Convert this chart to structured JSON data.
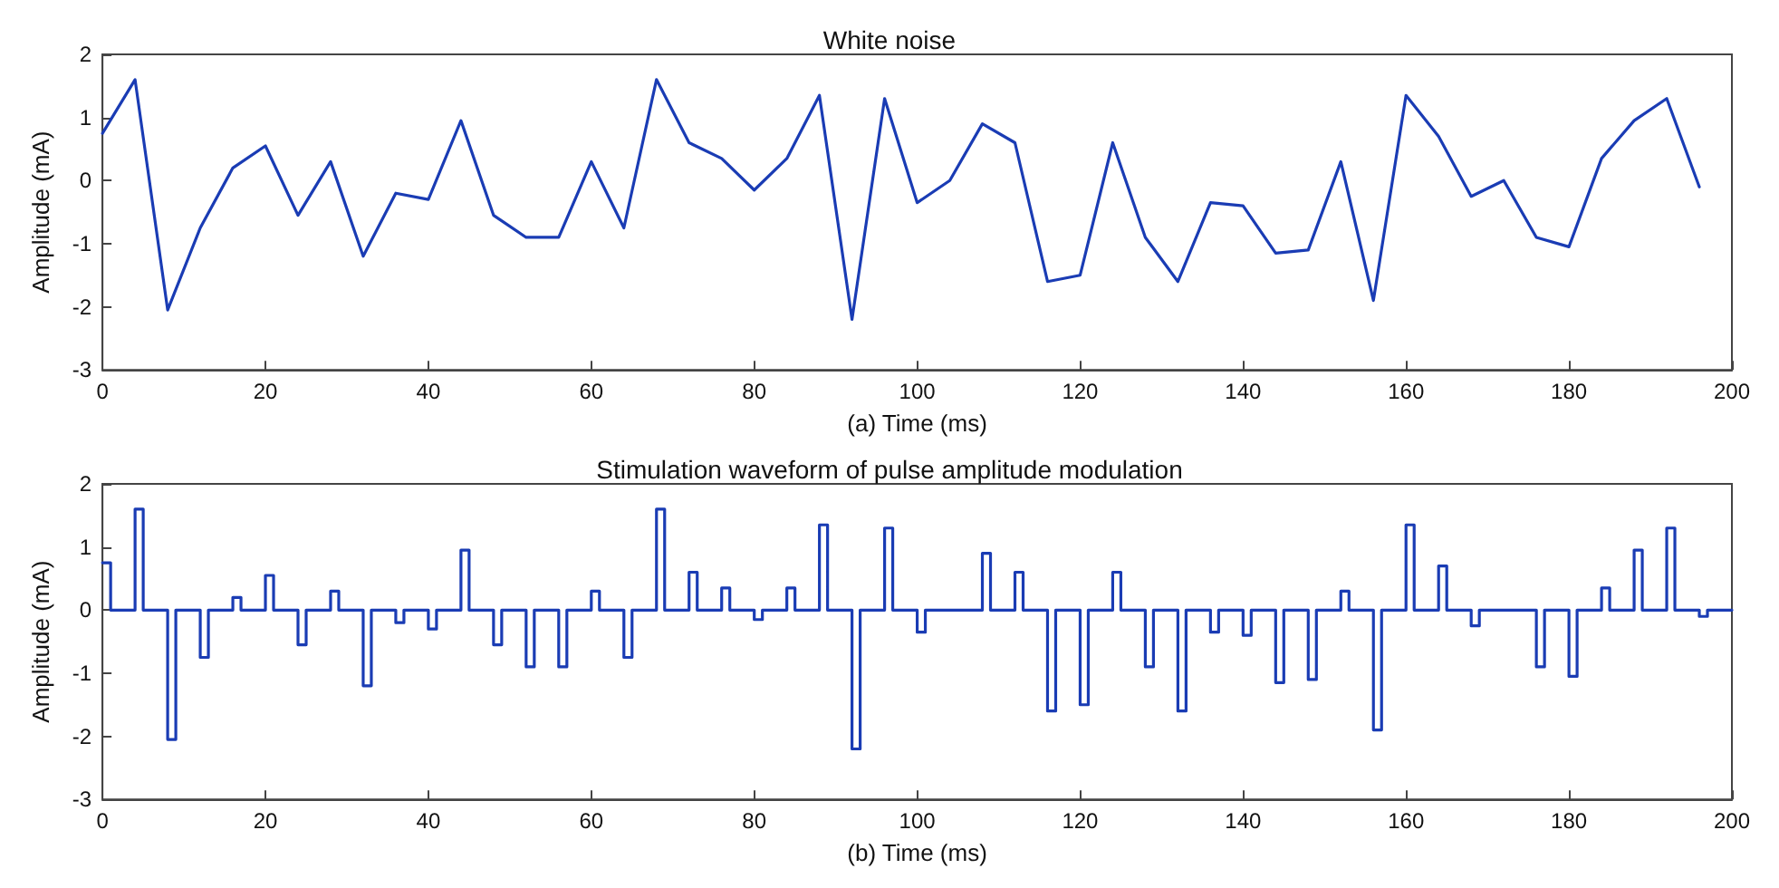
{
  "chart_data": [
    {
      "type": "line",
      "title": "White noise",
      "xlabel": "(a) Time (ms)",
      "ylabel": "Amplitude (mA)",
      "xlim": [
        0,
        200
      ],
      "xticks": [
        0,
        20,
        40,
        60,
        80,
        100,
        120,
        140,
        160,
        180,
        200
      ],
      "ylim": [
        -3,
        2
      ],
      "yticks": [
        -3,
        -2,
        -1,
        0,
        1,
        2
      ],
      "grid": false,
      "marker": "none",
      "line_style": "solid",
      "series": [
        {
          "color": "#1a3cb4",
          "x": [
            0,
            4,
            8,
            12,
            16,
            20,
            24,
            28,
            32,
            36,
            40,
            44,
            48,
            52,
            56,
            60,
            64,
            68,
            72,
            76,
            80,
            84,
            88,
            92,
            96,
            100,
            104,
            108,
            112,
            116,
            120,
            124,
            128,
            132,
            136,
            140,
            144,
            148,
            152,
            156,
            160,
            164,
            168,
            172,
            176,
            180,
            184,
            188,
            192,
            196
          ],
          "values": [
            0.75,
            1.6,
            -2.05,
            -0.75,
            0.2,
            0.55,
            -0.55,
            0.3,
            -1.2,
            -0.2,
            -0.3,
            0.95,
            -0.55,
            -0.9,
            -0.9,
            0.3,
            -0.75,
            1.6,
            0.6,
            0.35,
            -0.15,
            0.35,
            1.35,
            -2.2,
            1.3,
            -0.35,
            0.0,
            0.9,
            0.6,
            -1.6,
            -1.5,
            0.6,
            -0.9,
            -1.6,
            -0.35,
            -0.4,
            -1.15,
            -1.1,
            0.3,
            -1.9,
            1.35,
            0.7,
            -0.25,
            0.0,
            -0.9,
            -1.05,
            0.35,
            0.95,
            1.3,
            -0.1
          ]
        }
      ]
    },
    {
      "type": "step",
      "title": "Stimulation waveform of pulse amplitude modulation",
      "xlabel": "(b) Time (ms)",
      "ylabel": "Amplitude (mA)",
      "xlim": [
        0,
        200
      ],
      "xticks": [
        0,
        20,
        40,
        60,
        80,
        100,
        120,
        140,
        160,
        180,
        200
      ],
      "ylim": [
        -3,
        2
      ],
      "yticks": [
        -3,
        -2,
        -1,
        0,
        1,
        2
      ],
      "grid": false,
      "marker": "none",
      "line_style": "solid",
      "series": [
        {
          "color": "#1a3cb4",
          "x": [
            0,
            1,
            4,
            5,
            8,
            9,
            12,
            13,
            16,
            17,
            20,
            21,
            24,
            25,
            28,
            29,
            32,
            33,
            36,
            37,
            40,
            41,
            44,
            45,
            48,
            49,
            52,
            53,
            56,
            57,
            60,
            61,
            64,
            65,
            68,
            69,
            72,
            73,
            76,
            77,
            80,
            81,
            84,
            85,
            88,
            89,
            92,
            93,
            96,
            97,
            100,
            101,
            104,
            105,
            108,
            109,
            112,
            113,
            116,
            117,
            120,
            121,
            124,
            125,
            128,
            129,
            132,
            133,
            136,
            137,
            140,
            141,
            144,
            145,
            148,
            149,
            152,
            153,
            156,
            157,
            160,
            161,
            164,
            165,
            168,
            169,
            172,
            173,
            176,
            177,
            180,
            181,
            184,
            185,
            188,
            189,
            192,
            193,
            196,
            197,
            200
          ],
          "values": [
            0.75,
            0,
            1.6,
            0,
            -2.05,
            0,
            -0.75,
            0,
            0.2,
            0,
            0.55,
            0,
            -0.55,
            0,
            0.3,
            0,
            -1.2,
            0,
            -0.2,
            0,
            -0.3,
            0,
            0.95,
            0,
            -0.55,
            0,
            -0.9,
            0,
            -0.9,
            0,
            0.3,
            0,
            -0.75,
            0,
            1.6,
            0,
            0.6,
            0,
            0.35,
            0,
            -0.15,
            0,
            0.35,
            0,
            1.35,
            0,
            -2.2,
            0,
            1.3,
            0,
            -0.35,
            0,
            0.0,
            0,
            0.9,
            0,
            0.6,
            0,
            -1.6,
            0,
            -1.5,
            0,
            0.6,
            0,
            -0.9,
            0,
            -1.6,
            0,
            -0.35,
            0,
            -0.4,
            0,
            -1.15,
            0,
            -1.1,
            0,
            0.3,
            0,
            -1.9,
            0,
            1.35,
            0,
            0.7,
            0,
            -0.25,
            0,
            0.0,
            0,
            -0.9,
            0,
            -1.05,
            0,
            0.35,
            0,
            0.95,
            0,
            1.3,
            0,
            -0.1,
            0,
            0
          ]
        }
      ]
    }
  ]
}
